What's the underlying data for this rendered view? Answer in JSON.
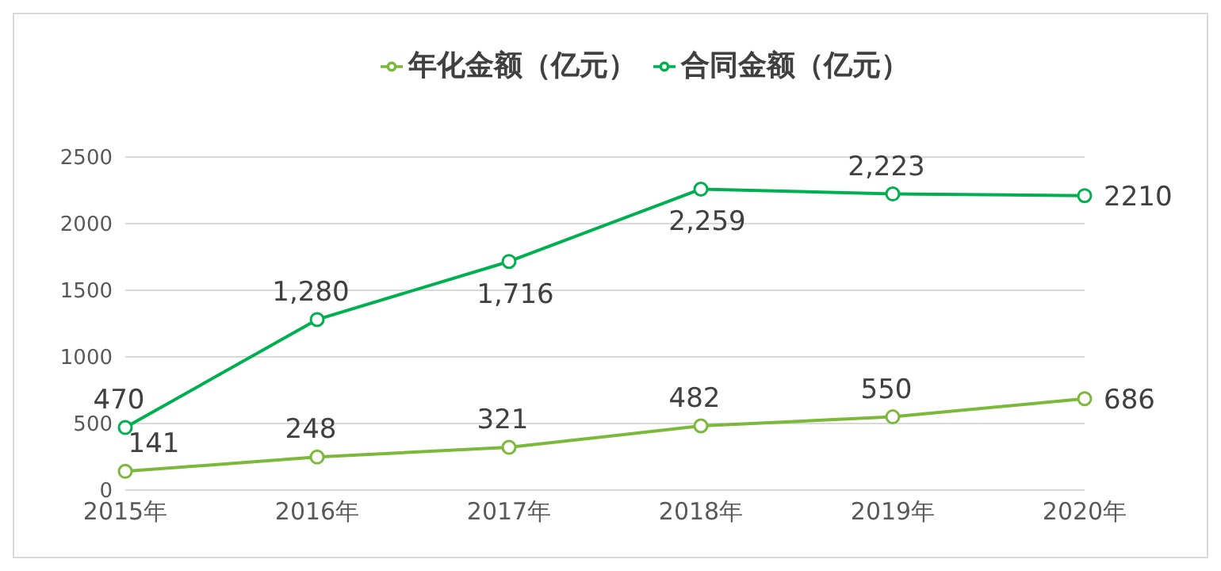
{
  "chart_data": {
    "type": "line",
    "categories": [
      "2015年",
      "2016年",
      "2017年",
      "2018年",
      "2019年",
      "2020年"
    ],
    "series": [
      {
        "name": "年化金额（亿元）",
        "color": "#7cb83a",
        "values": [
          141,
          248,
          321,
          482,
          550,
          686
        ],
        "value_labels": [
          "141",
          "248",
          "321",
          "482",
          "550",
          "686"
        ]
      },
      {
        "name": "合同金额（亿元）",
        "color": "#00b050",
        "values": [
          470,
          1280,
          1716,
          2259,
          2223,
          2210
        ],
        "value_labels": [
          "470",
          "1,280",
          "1,716",
          "2,259",
          "2,223",
          "2210"
        ]
      }
    ],
    "ylim": [
      0,
      2500
    ],
    "yticks": [
      0,
      500,
      1000,
      1500,
      2000,
      2500
    ],
    "grid": "y",
    "legend": "top",
    "marker": "circle",
    "line_style": "solid"
  }
}
